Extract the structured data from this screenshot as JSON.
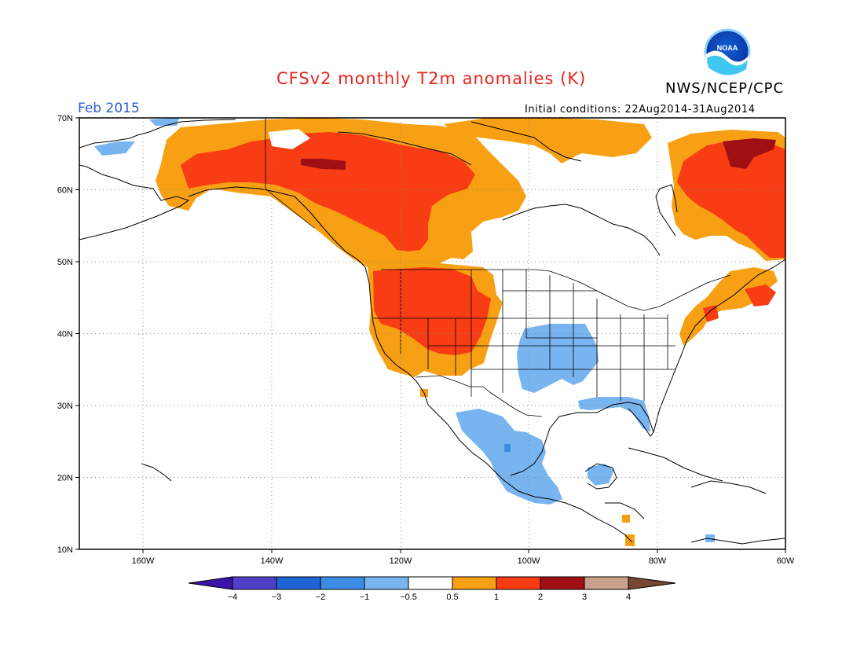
{
  "title": "CFSv2 monthly T2m anomalies (K)",
  "agency": "NWS/NCEP/CPC",
  "logo_text": "NOAA",
  "valid_month": "Feb 2015",
  "initial_conditions": "Initial conditions: 22Aug2014-31Aug2014",
  "lat_labels": [
    "70N",
    "60N",
    "50N",
    "40N",
    "30N",
    "20N",
    "10N"
  ],
  "lon_labels": [
    "160W",
    "140W",
    "120W",
    "100W",
    "80W",
    "60W"
  ],
  "colorbar": {
    "bins": [
      {
        "color": "#3a14a8"
      },
      {
        "color": "#5040c8"
      },
      {
        "color": "#1e64d4"
      },
      {
        "color": "#3c8ce6"
      },
      {
        "color": "#78b4f0"
      },
      {
        "color": "#ffffff"
      },
      {
        "color": "#f7a013"
      },
      {
        "color": "#f83c14"
      },
      {
        "color": "#a00f14"
      },
      {
        "color": "#c8a08c"
      },
      {
        "color": "#784632"
      }
    ],
    "labels": [
      "−4",
      "−3",
      "−2",
      "−1",
      "−0.5",
      "0.5",
      "1",
      "2",
      "3",
      "4"
    ]
  },
  "anomaly_colors": {
    "light_blue": "#78b4f0",
    "blue": "#3c8ce6",
    "orange": "#f7a013",
    "red": "#f83c14",
    "dark_red": "#a00f14"
  }
}
